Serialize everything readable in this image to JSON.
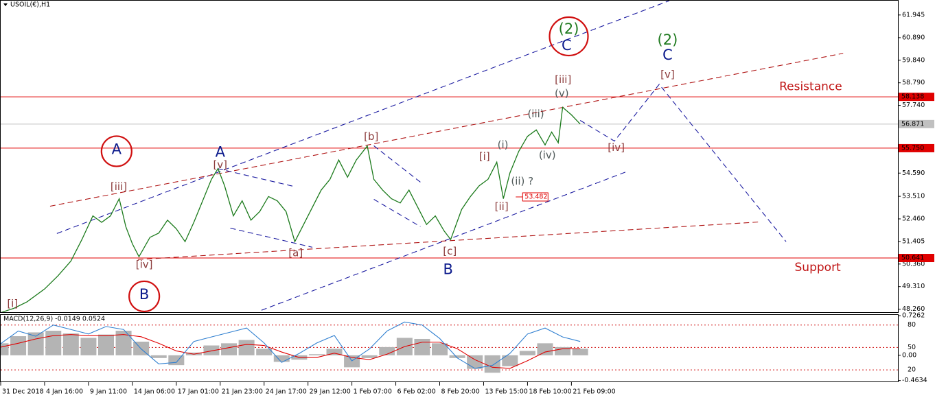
{
  "chart_data": [
    {
      "type": "line",
      "title": "USOIL(€),H1",
      "xlim": [
        0,
        20.4375
      ],
      "ylim": [
        48.12,
        62.61
      ],
      "xticks": [
        {
          "value": 0,
          "label": "31 Dec 2018"
        },
        {
          "value": 1,
          "label": "4 Jan 16:00"
        },
        {
          "value": 2,
          "label": "9 Jan 11:00"
        },
        {
          "value": 3,
          "label": "14 Jan 06:00"
        },
        {
          "value": 4,
          "label": "17 Jan 01:00"
        },
        {
          "value": 5,
          "label": "21 Jan 23:00"
        },
        {
          "value": 6,
          "label": "24 Jan 17:00"
        },
        {
          "value": 7,
          "label": "29 Jan 12:00"
        },
        {
          "value": 8,
          "label": "1 Feb 07:00"
        },
        {
          "value": 9,
          "label": "6 Feb 02:00"
        },
        {
          "value": 10,
          "label": "8 Feb 20:00"
        },
        {
          "value": 11,
          "label": "13 Feb 15:00"
        },
        {
          "value": 12,
          "label": "18 Feb 10:00"
        },
        {
          "value": 13,
          "label": "21 Feb 09:00"
        }
      ],
      "yticks": [
        61.945,
        {
          "value": 60.89,
          "label": "60.890"
        },
        {
          "value": 59.84,
          "label": "59.840"
        },
        {
          "value": 58.79,
          "label": "58.790"
        },
        {
          "value": 57.74,
          "label": "57.740"
        },
        {
          "value": 54.59,
          "label": "54.590"
        },
        {
          "value": 53.51,
          "label": "53.510"
        },
        {
          "value": 52.46,
          "label": "52.460"
        },
        51.405,
        {
          "value": 50.36,
          "label": "50.360"
        },
        {
          "value": 49.31,
          "label": "49.310"
        },
        {
          "value": 48.26,
          "label": "48.260"
        }
      ],
      "series": [
        {
          "color": "#1b7a1b",
          "x": [
            0,
            0.3,
            0.6,
            1.0,
            1.3,
            1.6,
            1.85,
            2.1,
            2.3,
            2.5,
            2.7,
            2.85,
            3.0,
            3.15,
            3.4,
            3.6,
            3.8,
            4.0,
            4.2,
            4.4,
            4.6,
            4.8,
            4.95,
            5.1,
            5.3,
            5.5,
            5.7,
            5.9,
            6.1,
            6.3,
            6.5,
            6.7,
            6.9,
            7.1,
            7.3,
            7.5,
            7.7,
            7.9,
            8.1,
            8.35,
            8.5,
            8.7,
            8.9,
            9.1,
            9.3,
            9.5,
            9.7,
            9.9,
            10.1,
            10.25,
            10.5,
            10.7,
            10.9,
            11.1,
            11.3,
            11.45,
            11.6,
            11.8,
            12.0,
            12.2,
            12.4,
            12.55,
            12.7,
            12.8,
            13.0,
            13.2
          ],
          "values": [
            48.1,
            48.3,
            48.6,
            49.2,
            49.8,
            50.5,
            51.5,
            52.6,
            52.3,
            52.6,
            53.4,
            52.1,
            51.3,
            50.7,
            51.6,
            51.8,
            52.4,
            52.0,
            51.4,
            52.3,
            53.3,
            54.3,
            54.8,
            54.0,
            52.6,
            53.3,
            52.4,
            52.8,
            53.5,
            53.3,
            52.8,
            51.4,
            52.2,
            53.0,
            53.8,
            54.3,
            55.2,
            54.4,
            55.2,
            55.85,
            54.3,
            53.8,
            53.4,
            53.2,
            53.8,
            53.0,
            52.2,
            52.6,
            51.9,
            51.5,
            52.9,
            53.5,
            54.0,
            54.3,
            55.1,
            53.4,
            54.6,
            55.6,
            56.3,
            56.6,
            55.9,
            56.5,
            56.0,
            57.65,
            57.3,
            56.87
          ]
        }
      ],
      "levels": [
        {
          "value": 58.138,
          "color": "#e00000"
        },
        {
          "value": 56.871,
          "color": "#c0c0c0"
        },
        {
          "value": 55.75,
          "label": "55.750",
          "color": "#e00000"
        },
        {
          "value": 50.641,
          "color": "#e00000"
        }
      ],
      "trendlines": [
        {
          "x": [
            1.28,
            15.23
          ],
          "y": [
            51.78,
            62.61
          ],
          "color": "#1a1aa0"
        },
        {
          "x": [
            5.94,
            14.25
          ],
          "y": [
            48.21,
            54.65
          ],
          "color": "#1a1aa0"
        },
        {
          "x": [
            1.125,
            19.19
          ],
          "y": [
            53.05,
            60.16
          ],
          "color": "#b01515"
        },
        {
          "x": [
            3.125,
            17.31
          ],
          "y": [
            50.57,
            52.32
          ],
          "color": "#b01515"
        },
        {
          "x": [
            13.2,
            13.98,
            15.0,
            17.89
          ],
          "y": [
            57.04,
            56.08,
            58.72,
            51.4
          ],
          "color": "#1a1aa0"
        },
        {
          "x": [
            4.94,
            6.72
          ],
          "y": [
            54.8,
            53.95
          ],
          "color": "#1a1aa0"
        },
        {
          "x": [
            5.23,
            7.1
          ],
          "y": [
            52.03,
            51.14
          ],
          "color": "#1a1aa0"
        },
        {
          "x": [
            8.5,
            9.56
          ],
          "y": [
            55.86,
            54.17
          ],
          "color": "#1a1aa0"
        },
        {
          "x": [
            8.5,
            9.56
          ],
          "y": [
            53.37,
            52.1
          ],
          "color": "#1a1aa0"
        }
      ],
      "price_marker": {
        "x": 11.92,
        "value": 53.482,
        "color": "#e00000"
      },
      "annotations": [
        {
          "text": "[i]",
          "x": 0.27,
          "y": 48.5,
          "color": "#8b3a3a"
        },
        {
          "text": "[iii]",
          "x": 2.69,
          "y": 53.95,
          "color": "#8b3a3a"
        },
        {
          "text": "[iv]",
          "x": 3.27,
          "y": 50.32,
          "color": "#8b3a3a"
        },
        {
          "text": "[v]",
          "x": 5.0,
          "y": 54.97,
          "color": "#8b3a3a"
        },
        {
          "text": "[a]",
          "x": 6.72,
          "y": 50.86,
          "color": "#8b3a3a"
        },
        {
          "text": "[b]",
          "x": 8.44,
          "y": 56.27,
          "color": "#8b3a3a"
        },
        {
          "text": "[c]",
          "x": 10.23,
          "y": 50.95,
          "color": "#8b3a3a"
        },
        {
          "text": "[i]",
          "x": 11.02,
          "y": 55.35,
          "color": "#8b3a3a"
        },
        {
          "text": "[ii]",
          "x": 11.41,
          "y": 53.02,
          "color": "#8b3a3a"
        },
        {
          "text": "[iii]",
          "x": 12.81,
          "y": 58.92,
          "color": "#8b3a3a"
        },
        {
          "text": "[iv]",
          "x": 14.02,
          "y": 55.76,
          "color": "#8b3a3a"
        },
        {
          "text": "[v]",
          "x": 15.19,
          "y": 59.17,
          "color": "#8b3a3a"
        },
        {
          "text": "(i)",
          "x": 11.44,
          "y": 55.89,
          "color": "#505a5a"
        },
        {
          "text": "(ii) ?",
          "x": 11.88,
          "y": 54.2,
          "color": "#505a5a"
        },
        {
          "text": "(iii)",
          "x": 12.19,
          "y": 57.32,
          "color": "#505a5a"
        },
        {
          "text": "(iv)",
          "x": 12.45,
          "y": 55.41,
          "color": "#505a5a"
        },
        {
          "text": "(v)",
          "x": 12.78,
          "y": 58.28,
          "color": "#505a5a"
        },
        {
          "text": "A",
          "x": 5.0,
          "y": 55.54,
          "color": "#0b1a8c",
          "big": true
        },
        {
          "text": "A",
          "x": 2.64,
          "y": 55.67,
          "color": "#0b1a8c",
          "big": true,
          "circled": true
        },
        {
          "text": "B",
          "x": 3.27,
          "y": 48.92,
          "color": "#0b1a8c",
          "big": true,
          "circled": true
        },
        {
          "text": "B",
          "x": 10.19,
          "y": 50.09,
          "color": "#0b1a8c",
          "big": true
        },
        {
          "text": "C",
          "x": 12.89,
          "y": 60.51,
          "color": "#0b1a8c",
          "big": true
        },
        {
          "text": "(2)",
          "x": 12.94,
          "y": 61.27,
          "color": "#1f7a1f",
          "big": true,
          "circled": true
        },
        {
          "text": "(2)",
          "x": 15.19,
          "y": 60.76,
          "color": "#1f7a1f",
          "big": true
        },
        {
          "text": "C",
          "x": 15.19,
          "y": 60.06,
          "color": "#0b1a8c",
          "big": true
        },
        {
          "text": "Resistance",
          "x": 18.45,
          "y": 58.6,
          "color": "#c01515",
          "big": true
        },
        {
          "text": "Support",
          "x": 18.61,
          "y": 50.19,
          "color": "#c01515",
          "big": true
        }
      ]
    },
    {
      "type": "macd",
      "title": "MACD(12,26,9) -0.0149 0.0524",
      "xlim": [
        0,
        20.4375
      ],
      "ylim": [
        -0.48,
        0.74
      ],
      "yticks": [
        0.7262,
        {
          "value": 0,
          "label": "0.00"
        },
        -0.4634
      ],
      "y2lim": [
        4.5,
        93.5
      ],
      "y2ticks": [
        80,
        50,
        20
      ],
      "x": [
        0,
        0.4,
        0.8,
        1.2,
        1.6,
        2.0,
        2.4,
        2.8,
        3.2,
        3.6,
        4.0,
        4.4,
        4.8,
        5.2,
        5.6,
        6.0,
        6.4,
        6.8,
        7.2,
        7.6,
        8.0,
        8.4,
        8.8,
        9.2,
        9.6,
        10.0,
        10.4,
        10.8,
        11.2,
        11.6,
        12.0,
        12.4,
        12.8,
        13.2
      ],
      "series": [
        {
          "type": "bar",
          "color": "#b4b4b4",
          "values": [
            0.22,
            0.35,
            0.42,
            0.45,
            0.4,
            0.32,
            0.38,
            0.45,
            0.25,
            -0.05,
            -0.18,
            0.05,
            0.18,
            0.22,
            0.28,
            0.12,
            -0.12,
            -0.08,
            0.02,
            0.12,
            -0.22,
            -0.05,
            0.15,
            0.32,
            0.3,
            0.22,
            -0.05,
            -0.25,
            -0.32,
            -0.2,
            0.08,
            0.22,
            0.15,
            0.12
          ]
        },
        {
          "type": "line",
          "color": "#e00000",
          "values": [
            0.15,
            0.22,
            0.3,
            0.36,
            0.38,
            0.36,
            0.36,
            0.38,
            0.34,
            0.22,
            0.08,
            0.02,
            0.08,
            0.14,
            0.2,
            0.18,
            0.06,
            -0.04,
            -0.04,
            0.04,
            -0.04,
            -0.08,
            0.02,
            0.16,
            0.24,
            0.24,
            0.12,
            -0.08,
            -0.22,
            -0.24,
            -0.1,
            0.06,
            0.12,
            0.12
          ]
        },
        {
          "type": "line",
          "axis": "y2",
          "color": "#2f7fd0",
          "values": [
            55,
            72,
            65,
            80,
            74,
            68,
            78,
            74,
            48,
            28,
            30,
            58,
            64,
            70,
            76,
            56,
            30,
            42,
            56,
            66,
            32,
            48,
            72,
            84,
            80,
            62,
            36,
            22,
            26,
            42,
            68,
            76,
            64,
            58
          ]
        }
      ]
    }
  ]
}
